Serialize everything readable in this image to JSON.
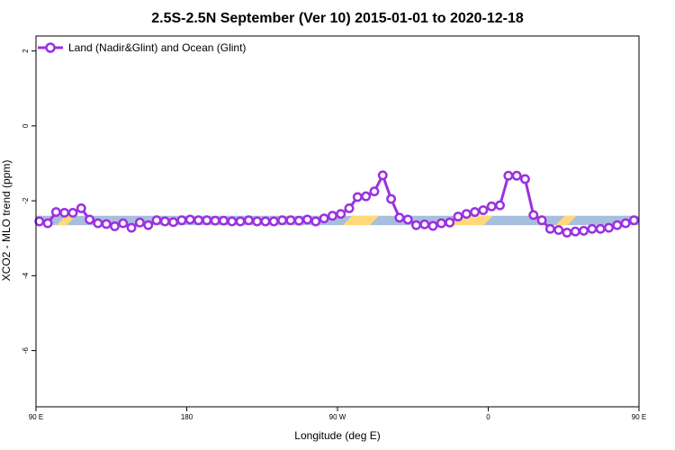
{
  "chart_data": {
    "type": "line",
    "title": "2.5S-2.5N September (Ver 10)   2015-01-01 to 2020-12-18",
    "xlabel": "Longitude (deg E)",
    "ylabel": "XCO2 - MLO trend (ppm)",
    "xlim": [
      90,
      450
    ],
    "ylim": [
      -7.5,
      2.4
    ],
    "x_ticks": [
      {
        "value": 90,
        "label": "90 E"
      },
      {
        "value": 180,
        "label": "180"
      },
      {
        "value": 270,
        "label": "90 W"
      },
      {
        "value": 360,
        "label": "0"
      },
      {
        "value": 450,
        "label": "90 E"
      }
    ],
    "y_ticks": [
      {
        "value": 2,
        "label": "2"
      },
      {
        "value": 0,
        "label": "0"
      },
      {
        "value": -2,
        "label": "-2"
      },
      {
        "value": -4,
        "label": "-4"
      },
      {
        "value": -6,
        "label": "-6"
      }
    ],
    "grid": false,
    "legend": {
      "position": "top-left",
      "entries": [
        "Land (Nadir&Glint) and Ocean (Glint)"
      ]
    },
    "band": {
      "y_range": [
        -2.65,
        -2.4
      ],
      "ocean_color": "#a7bfdf",
      "land_color": "#ffd97a",
      "land_segments": [
        [
          105,
          111
        ],
        [
          276,
          292
        ],
        [
          339,
          360
        ],
        [
          403,
          410
        ]
      ]
    },
    "series": [
      {
        "name": "Land (Nadir&Glint) and Ocean (Glint)",
        "color": "#9b30e0",
        "x": [
          92,
          97,
          102,
          107,
          112,
          117,
          122,
          127,
          132,
          137,
          142,
          147,
          152,
          157,
          162,
          167,
          172,
          177,
          182,
          187,
          192,
          197,
          202,
          207,
          212,
          217,
          222,
          227,
          232,
          237,
          242,
          247,
          252,
          257,
          262,
          267,
          272,
          277,
          282,
          287,
          292,
          297,
          302,
          307,
          312,
          317,
          322,
          327,
          332,
          337,
          342,
          347,
          352,
          357,
          362,
          367,
          372,
          377,
          382,
          387,
          392,
          397,
          402,
          407,
          412,
          417,
          422,
          427,
          432,
          437,
          442,
          447
        ],
        "y": [
          -2.55,
          -2.6,
          -2.3,
          -2.32,
          -2.32,
          -2.2,
          -2.5,
          -2.6,
          -2.62,
          -2.68,
          -2.6,
          -2.72,
          -2.58,
          -2.65,
          -2.52,
          -2.55,
          -2.57,
          -2.52,
          -2.5,
          -2.52,
          -2.52,
          -2.53,
          -2.53,
          -2.55,
          -2.55,
          -2.52,
          -2.55,
          -2.55,
          -2.55,
          -2.52,
          -2.52,
          -2.53,
          -2.5,
          -2.55,
          -2.47,
          -2.4,
          -2.35,
          -2.2,
          -1.9,
          -1.88,
          -1.75,
          -1.32,
          -1.95,
          -2.45,
          -2.5,
          -2.65,
          -2.63,
          -2.67,
          -2.6,
          -2.58,
          -2.42,
          -2.35,
          -2.3,
          -2.25,
          -2.15,
          -2.12,
          -1.33,
          -1.33,
          -1.42,
          -2.38,
          -2.52,
          -2.75,
          -2.78,
          -2.85,
          -2.82,
          -2.8,
          -2.75,
          -2.75,
          -2.72,
          -2.65,
          -2.6,
          -2.52
        ]
      }
    ]
  }
}
